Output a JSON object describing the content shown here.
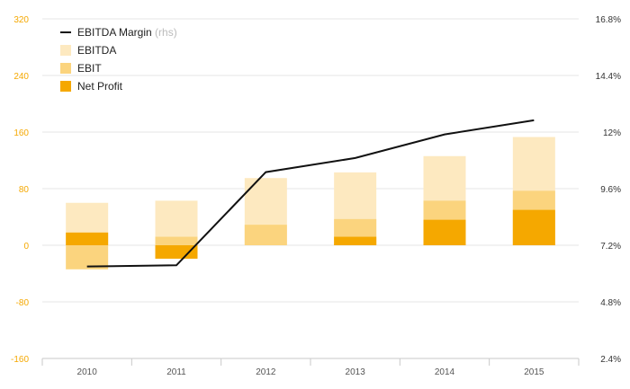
{
  "chart_data": {
    "type": "bar",
    "categories": [
      "2010",
      "2011",
      "2012",
      "2013",
      "2014",
      "2015"
    ],
    "series": [
      {
        "name": "EBITDA",
        "kind": "bar",
        "color": "#fde9c0",
        "values": [
          60,
          63,
          95,
          103,
          126,
          153
        ]
      },
      {
        "name": "EBIT",
        "kind": "bar",
        "color": "#fbd47e",
        "values": [
          -34,
          12,
          29,
          37,
          63,
          77
        ]
      },
      {
        "name": "Net Profit",
        "kind": "bar",
        "color": "#f5a800",
        "values": [
          18,
          -19,
          0,
          12,
          36,
          50
        ]
      },
      {
        "name": "EBITDA Margin",
        "name_suffix": "(rhs)",
        "kind": "line",
        "axis": "right",
        "color": "#111111",
        "values": [
          6.3,
          6.35,
          10.3,
          10.9,
          11.9,
          12.5
        ]
      }
    ],
    "y_left": {
      "ylim": [
        -160,
        320
      ],
      "ticks": [
        320,
        240,
        160,
        80,
        0,
        -80,
        -160
      ],
      "color": "#f5a800"
    },
    "y_right": {
      "ylim": [
        2.4,
        16.8
      ],
      "ticks": [
        "16.8%",
        "14.4%",
        "12%",
        "9.6%",
        "7.2%",
        "4.8%",
        "2.4%"
      ]
    },
    "grid": true,
    "legend_position": "top-left",
    "legend": [
      {
        "label": "EBITDA Margin",
        "suffix": "(rhs)",
        "icon": "line-swatch",
        "color": "#111111"
      },
      {
        "label": "EBITDA",
        "icon": "square-swatch",
        "color": "#fde9c0"
      },
      {
        "label": "EBIT",
        "icon": "square-swatch",
        "color": "#fbd47e"
      },
      {
        "label": "Net Profit",
        "icon": "square-swatch",
        "color": "#f5a800"
      }
    ]
  }
}
